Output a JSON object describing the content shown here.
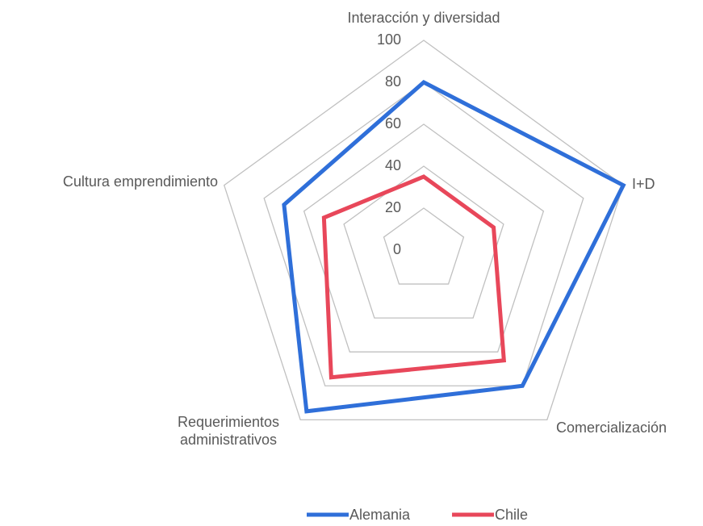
{
  "chart_data": {
    "type": "radar",
    "categories": [
      "Interacción y diversidad",
      "I+D",
      "Comercialización",
      "Requerimientos administrativos",
      "Cultura emprendimiento"
    ],
    "series": [
      {
        "name": "Alemania",
        "color": "#2f6fd9",
        "values": [
          80,
          100,
          80,
          95,
          70
        ]
      },
      {
        "name": "Chile",
        "color": "#e8475a",
        "values": [
          35,
          35,
          65,
          75,
          50
        ]
      }
    ],
    "ylim": [
      0,
      100
    ],
    "yticks": [
      0,
      20,
      40,
      60,
      80,
      100
    ],
    "grid": true,
    "legend": "bottom"
  }
}
